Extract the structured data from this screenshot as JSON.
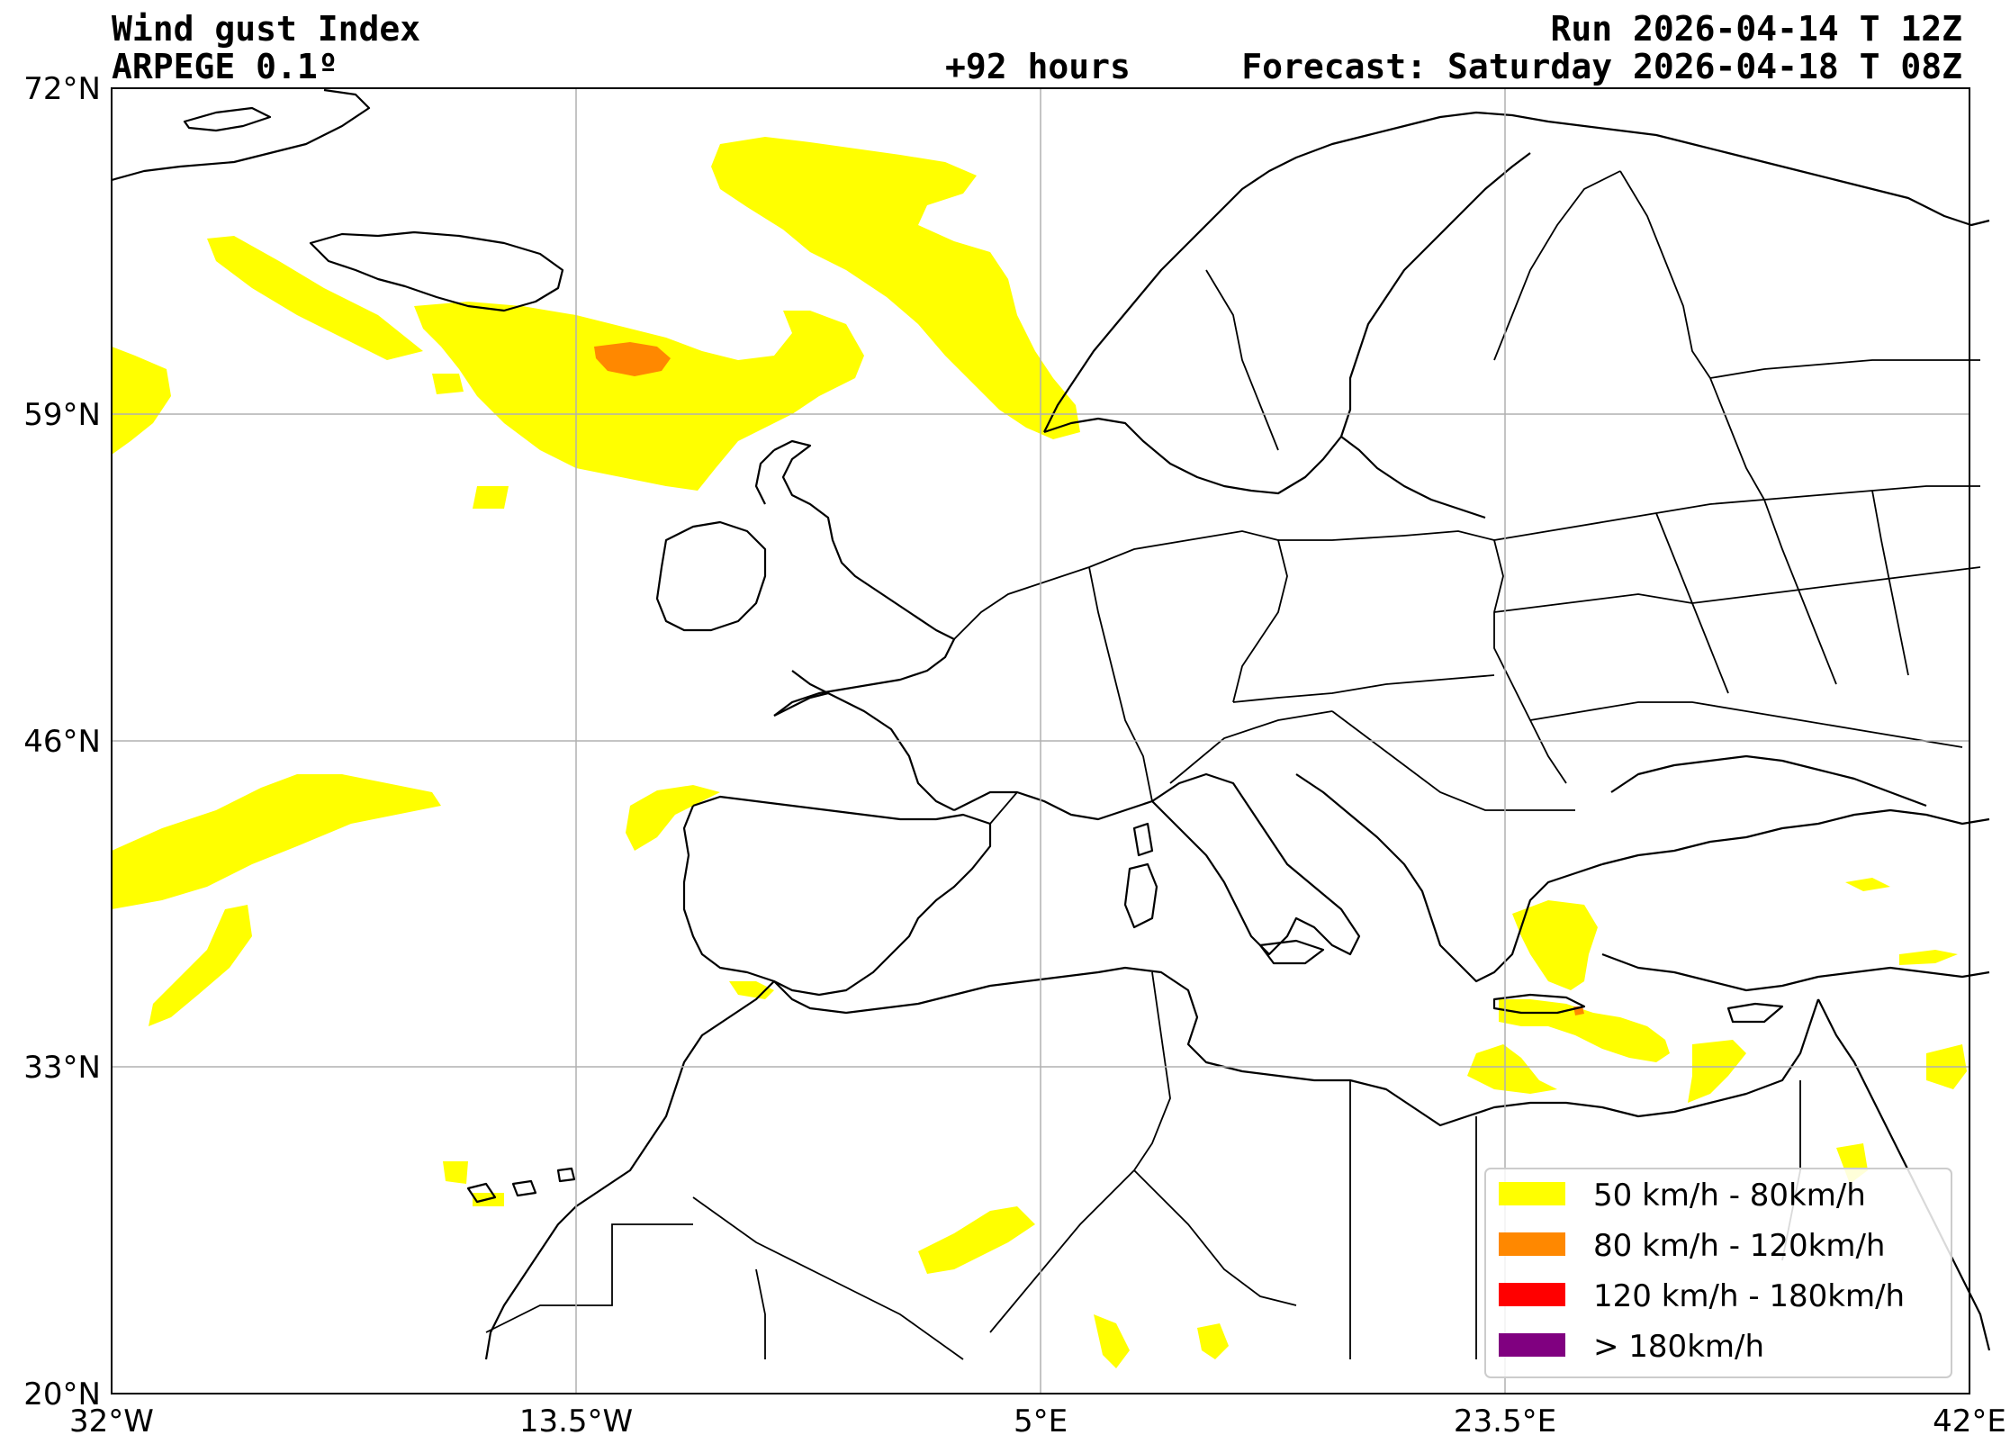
{
  "header": {
    "title": "Wind gust Index",
    "model": "ARPEGE 0.1º",
    "lead_time": "+92 hours",
    "run": "Run 2026-04-14 T 12Z",
    "forecast": "Forecast: Saturday 2026-04-18 T 08Z"
  },
  "map": {
    "lon_range": [
      -32,
      42
    ],
    "lat_range": [
      20,
      72
    ],
    "lon_ticks": [
      {
        "value": -32,
        "label": "32°W"
      },
      {
        "value": -13.5,
        "label": "13.5°W"
      },
      {
        "value": 5,
        "label": "5°E"
      },
      {
        "value": 23.5,
        "label": "23.5°E"
      },
      {
        "value": 42,
        "label": "42°E"
      }
    ],
    "lat_ticks": [
      {
        "value": 72,
        "label": "72°N"
      },
      {
        "value": 59,
        "label": "59°N"
      },
      {
        "value": 46,
        "label": "46°N"
      },
      {
        "value": 33,
        "label": "33°N"
      },
      {
        "value": 20,
        "label": "20°N"
      }
    ],
    "grid": true,
    "legend_position": "bottom-right",
    "legend": [
      {
        "label": "50 km/h - 80km/h",
        "color": "#ffff00"
      },
      {
        "label": "80 km/h - 120km/h",
        "color": "#ff8800"
      },
      {
        "label": "120 km/h - 180km/h",
        "color": "#ff0000"
      },
      {
        "label": "> 180km/h",
        "color": "#800080"
      }
    ]
  }
}
